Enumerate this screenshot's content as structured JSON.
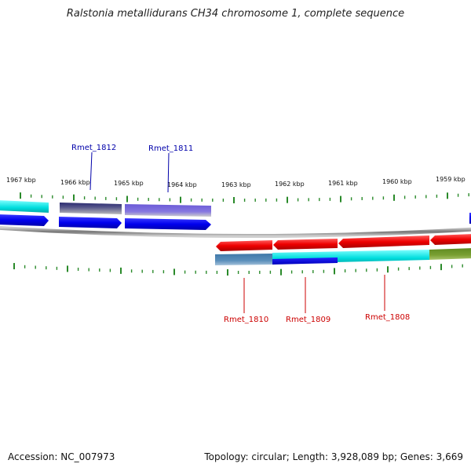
{
  "title": "Ralstonia metallidurans CH34 chromosome 1, complete sequence",
  "footer": {
    "accession": "Accession: NC_007973",
    "summary": "Topology: circular; Length: 3,928,089 bp; Genes: 3,669"
  },
  "colors": {
    "forward_cds": "#0000ee",
    "reverse_cds": "#ee0000",
    "forward_label": "#0000aa",
    "reverse_label": "#cc0000",
    "tick": "#2a8a2a",
    "backbone": "#888888"
  },
  "scale_labels": [
    "1967 kbp",
    "1966 kbp",
    "1965 kbp",
    "1964 kbp",
    "1963 kbp",
    "1962 kbp",
    "1961 kbp",
    "1960 kbp",
    "1959 kbp"
  ],
  "forward_labels": [
    "Rmet_1812",
    "Rmet_1811"
  ],
  "reverse_labels": [
    "Rmet_1810",
    "Rmet_1809",
    "Rmet_1808"
  ]
}
